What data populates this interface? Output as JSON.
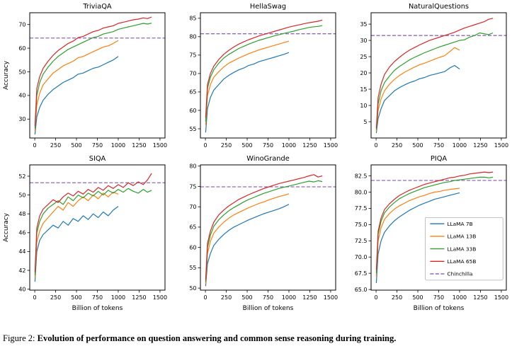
{
  "caption": {
    "label": "Figure 2: ",
    "text": "Evolution of performance on question answering and common sense reasoning during training."
  },
  "legend_labels": [
    "LLaMA 7B",
    "LLaMA 13B",
    "LLaMA 33B",
    "LLaMA 65B",
    "Chinchilla"
  ],
  "colors": {
    "LLaMA 7B": "#1f77b4",
    "LLaMA 13B": "#ff7f0e",
    "LLaMA 33B": "#2ca02c",
    "LLaMA 65B": "#d62728",
    "Chinchilla": "#9467bd",
    "frame": "#000000"
  },
  "x_short": [
    3,
    25,
    60,
    100,
    160,
    220,
    280,
    340,
    400,
    460,
    520,
    580,
    640,
    700,
    760,
    820,
    880,
    940,
    1000
  ],
  "x_long": [
    3,
    25,
    60,
    100,
    160,
    220,
    280,
    340,
    400,
    460,
    520,
    580,
    640,
    700,
    760,
    820,
    880,
    940,
    1000,
    1060,
    1120,
    1180,
    1240,
    1300,
    1350,
    1400
  ],
  "chart_data": [
    {
      "type": "line",
      "title": "TriviaQA",
      "ylabel": "Accuracy",
      "xlabel": "",
      "ylim": [
        22,
        75
      ],
      "yticks": [
        30,
        40,
        50,
        60,
        70
      ],
      "ytick_labels": [
        "30",
        "40",
        "50",
        "60",
        "70"
      ],
      "xticks": [
        0,
        250,
        500,
        750,
        1000,
        1250,
        1500
      ],
      "xlim": [
        -60,
        1560
      ],
      "chinchilla": 64.3,
      "show_legend": false,
      "series": [
        {
          "name": "LLaMA 7B",
          "xref": "short",
          "values": [
            23.5,
            31.0,
            35.0,
            38.0,
            40.5,
            42.5,
            44.0,
            45.5,
            46.5,
            47.5,
            49.0,
            49.5,
            50.5,
            51.5,
            52.0,
            53.0,
            54.0,
            55.0,
            56.5
          ]
        },
        {
          "name": "LLaMA 13B",
          "xref": "short",
          "values": [
            25.0,
            36.0,
            41.0,
            44.5,
            47.0,
            49.5,
            51.0,
            52.5,
            53.5,
            54.5,
            56.0,
            56.5,
            57.5,
            58.5,
            59.5,
            60.5,
            61.0,
            62.0,
            63.3
          ]
        },
        {
          "name": "LLaMA 33B",
          "xref": "long",
          "values": [
            26.0,
            40.0,
            45.5,
            49.0,
            52.0,
            54.5,
            56.5,
            58.0,
            59.5,
            60.5,
            61.5,
            62.5,
            63.5,
            64.5,
            65.0,
            66.0,
            66.5,
            67.0,
            68.0,
            68.5,
            69.0,
            69.5,
            70.0,
            70.5,
            70.2,
            70.6
          ]
        },
        {
          "name": "LLaMA 65B",
          "xref": "long",
          "values": [
            27.0,
            43.0,
            48.0,
            51.5,
            54.5,
            57.0,
            59.0,
            60.5,
            62.0,
            63.0,
            64.5,
            65.0,
            66.0,
            67.0,
            67.5,
            68.5,
            69.0,
            69.5,
            70.5,
            71.0,
            71.5,
            72.0,
            72.3,
            72.8,
            72.5,
            73.2
          ]
        }
      ]
    },
    {
      "type": "line",
      "title": "HellaSwag",
      "ylabel": "",
      "xlabel": "",
      "ylim": [
        52.5,
        86.5
      ],
      "yticks": [
        55,
        60,
        65,
        70,
        75,
        80,
        85
      ],
      "ytick_labels": [
        "55",
        "60",
        "65",
        "70",
        "75",
        "80",
        "85"
      ],
      "xticks": [
        0,
        250,
        500,
        750,
        1000,
        1250,
        1500
      ],
      "xlim": [
        -60,
        1560
      ],
      "chinchilla": 80.8,
      "show_legend": false,
      "series": [
        {
          "name": "LLaMA 7B",
          "xref": "short",
          "values": [
            54.0,
            60.5,
            63.5,
            65.5,
            67.0,
            68.5,
            69.5,
            70.3,
            71.0,
            71.5,
            72.2,
            72.6,
            73.2,
            73.6,
            74.0,
            74.4,
            74.8,
            75.2,
            75.7
          ]
        },
        {
          "name": "LLaMA 13B",
          "xref": "short",
          "values": [
            56.0,
            64.0,
            67.0,
            69.0,
            70.5,
            71.8,
            72.8,
            73.5,
            74.2,
            74.8,
            75.4,
            75.9,
            76.4,
            76.8,
            77.2,
            77.6,
            78.0,
            78.4,
            78.8
          ]
        },
        {
          "name": "LLaMA 33B",
          "xref": "long",
          "values": [
            57.0,
            66.0,
            69.0,
            71.0,
            72.8,
            74.2,
            75.2,
            76.0,
            76.8,
            77.4,
            78.0,
            78.5,
            79.0,
            79.4,
            79.8,
            80.2,
            80.5,
            80.9,
            81.2,
            81.5,
            81.9,
            82.2,
            82.5,
            82.7,
            82.8,
            83.0
          ]
        },
        {
          "name": "LLaMA 65B",
          "xref": "long",
          "values": [
            58.0,
            67.0,
            70.0,
            72.0,
            73.8,
            75.2,
            76.3,
            77.2,
            78.0,
            78.6,
            79.2,
            79.7,
            80.2,
            80.6,
            81.0,
            81.4,
            81.8,
            82.2,
            82.6,
            82.9,
            83.2,
            83.5,
            83.8,
            84.0,
            84.2,
            84.5
          ]
        }
      ]
    },
    {
      "type": "line",
      "title": "NaturalQuestions",
      "ylabel": "",
      "xlabel": "",
      "ylim": [
        0,
        38.5
      ],
      "yticks": [
        5,
        10,
        15,
        20,
        25,
        30,
        35
      ],
      "ytick_labels": [
        "5",
        "10",
        "15",
        "20",
        "25",
        "30",
        "35"
      ],
      "xticks": [
        0,
        250,
        500,
        750,
        1000,
        1250,
        1500
      ],
      "xlim": [
        -60,
        1560
      ],
      "chinchilla": 31.5,
      "show_legend": false,
      "series": [
        {
          "name": "LLaMA 7B",
          "xref": "short",
          "values": [
            1.5,
            6.0,
            9.0,
            11.5,
            13.0,
            14.5,
            15.5,
            16.3,
            17.0,
            17.5,
            18.2,
            18.6,
            19.2,
            19.6,
            20.0,
            20.4,
            21.5,
            22.3,
            21.2
          ]
        },
        {
          "name": "LLaMA 13B",
          "xref": "short",
          "values": [
            2.0,
            8.5,
            12.0,
            14.5,
            16.5,
            18.0,
            19.2,
            20.2,
            21.0,
            21.8,
            22.5,
            23.0,
            23.6,
            24.2,
            24.8,
            25.3,
            26.5,
            27.8,
            27.0
          ]
        },
        {
          "name": "LLaMA 33B",
          "xref": "long",
          "values": [
            2.5,
            10.5,
            14.5,
            17.0,
            19.0,
            20.8,
            22.0,
            23.0,
            24.0,
            24.8,
            25.5,
            26.2,
            26.8,
            27.4,
            28.0,
            28.5,
            29.0,
            29.5,
            30.0,
            30.2,
            31.0,
            31.5,
            32.3,
            32.0,
            31.8,
            32.3
          ]
        },
        {
          "name": "LLaMA 65B",
          "xref": "long",
          "values": [
            3.0,
            12.5,
            16.5,
            19.5,
            21.8,
            23.5,
            24.8,
            26.0,
            27.0,
            27.8,
            28.6,
            29.3,
            30.0,
            30.5,
            31.0,
            31.5,
            32.0,
            32.5,
            33.2,
            33.8,
            34.3,
            34.8,
            35.3,
            35.8,
            36.5,
            36.8
          ]
        }
      ]
    },
    {
      "type": "line",
      "title": "SIQA",
      "ylabel": "Accuracy",
      "xlabel": "Billion of tokens",
      "ylim": [
        39.9,
        53.2
      ],
      "yticks": [
        40,
        42,
        44,
        46,
        48,
        50,
        52
      ],
      "ytick_labels": [
        "40",
        "42",
        "44",
        "46",
        "48",
        "50",
        "52"
      ],
      "xticks": [
        0,
        250,
        500,
        750,
        1000,
        1250,
        1500
      ],
      "xlim": [
        -60,
        1560
      ],
      "chinchilla": 51.3,
      "show_legend": false,
      "series": [
        {
          "name": "LLaMA 7B",
          "xref": "short",
          "values": [
            40.8,
            44.0,
            45.2,
            45.8,
            46.3,
            46.8,
            46.5,
            47.2,
            46.8,
            47.5,
            47.2,
            47.8,
            47.4,
            48.0,
            47.6,
            48.2,
            47.8,
            48.4,
            48.8
          ]
        },
        {
          "name": "LLaMA 13B",
          "xref": "short",
          "values": [
            41.2,
            45.0,
            46.2,
            47.0,
            47.6,
            48.2,
            48.8,
            48.4,
            49.2,
            48.8,
            49.4,
            49.8,
            49.4,
            50.0,
            49.6,
            50.2,
            49.8,
            50.3,
            50.1
          ]
        },
        {
          "name": "LLaMA 33B",
          "xref": "long",
          "values": [
            41.5,
            46.0,
            47.2,
            48.0,
            48.6,
            49.0,
            49.4,
            49.0,
            49.8,
            49.4,
            50.0,
            49.7,
            50.2,
            49.9,
            50.4,
            50.0,
            50.5,
            50.2,
            50.6,
            50.3,
            50.7,
            50.4,
            50.2,
            50.6,
            50.3,
            50.5
          ]
        },
        {
          "name": "LLaMA 65B",
          "xref": "long",
          "values": [
            41.8,
            46.5,
            47.8,
            48.5,
            49.0,
            49.5,
            49.2,
            49.8,
            50.2,
            49.9,
            50.4,
            50.1,
            50.6,
            50.3,
            50.8,
            50.5,
            51.0,
            50.7,
            51.1,
            50.8,
            51.3,
            51.0,
            51.4,
            51.1,
            51.6,
            52.3
          ]
        }
      ]
    },
    {
      "type": "line",
      "title": "WinoGrande",
      "ylabel": "",
      "xlabel": "Billion of tokens",
      "ylim": [
        49.5,
        80.3
      ],
      "yticks": [
        50,
        55,
        60,
        65,
        70,
        75,
        80
      ],
      "ytick_labels": [
        "50",
        "55",
        "60",
        "65",
        "70",
        "75",
        "80"
      ],
      "xticks": [
        0,
        250,
        500,
        750,
        1000,
        1250,
        1500
      ],
      "xlim": [
        -60,
        1560
      ],
      "chinchilla": 74.9,
      "show_legend": false,
      "series": [
        {
          "name": "LLaMA 7B",
          "xref": "short",
          "values": [
            50.5,
            56.0,
            58.5,
            60.5,
            62.0,
            63.2,
            64.2,
            65.0,
            65.6,
            66.2,
            66.8,
            67.3,
            67.8,
            68.3,
            68.7,
            69.1,
            69.5,
            70.0,
            70.6
          ]
        },
        {
          "name": "LLaMA 13B",
          "xref": "short",
          "values": [
            51.0,
            58.5,
            61.5,
            63.5,
            65.0,
            66.2,
            67.2,
            68.0,
            68.6,
            69.2,
            69.8,
            70.3,
            70.8,
            71.2,
            71.7,
            72.1,
            72.5,
            72.8,
            73.2
          ]
        },
        {
          "name": "LLaMA 33B",
          "xref": "long",
          "values": [
            51.5,
            60.0,
            63.0,
            65.2,
            66.8,
            68.0,
            69.0,
            69.8,
            70.5,
            71.2,
            71.8,
            72.3,
            72.8,
            73.3,
            73.7,
            74.1,
            74.5,
            74.8,
            75.1,
            75.4,
            75.7,
            76.0,
            76.3,
            76.1,
            76.4,
            76.2
          ]
        },
        {
          "name": "LLaMA 65B",
          "xref": "long",
          "values": [
            52.0,
            61.0,
            64.0,
            66.2,
            68.0,
            69.2,
            70.2,
            71.0,
            71.8,
            72.4,
            73.0,
            73.5,
            74.0,
            74.5,
            74.9,
            75.3,
            75.7,
            76.0,
            76.3,
            76.6,
            76.9,
            77.2,
            77.6,
            77.9,
            77.3,
            77.6
          ]
        }
      ]
    },
    {
      "type": "line",
      "title": "PIQA",
      "ylabel": "",
      "xlabel": "Billion of tokens",
      "ylim": [
        64.9,
        84.2
      ],
      "yticks": [
        65.0,
        67.5,
        70.0,
        72.5,
        75.0,
        77.5,
        80.0,
        82.5
      ],
      "ytick_labels": [
        "65.0",
        "67.5",
        "70.0",
        "72.5",
        "75.0",
        "77.5",
        "80.0",
        "82.5"
      ],
      "xticks": [
        0,
        250,
        500,
        750,
        1000,
        1250,
        1500
      ],
      "xlim": [
        -60,
        1560
      ],
      "chinchilla": 81.8,
      "show_legend": true,
      "series": [
        {
          "name": "LLaMA 7B",
          "xref": "short",
          "values": [
            66.0,
            70.5,
            72.5,
            73.8,
            74.8,
            75.6,
            76.2,
            76.7,
            77.2,
            77.6,
            78.0,
            78.3,
            78.6,
            78.9,
            79.1,
            79.3,
            79.5,
            79.7,
            79.9
          ]
        },
        {
          "name": "LLaMA 13B",
          "xref": "short",
          "values": [
            67.0,
            72.5,
            74.5,
            75.8,
            76.7,
            77.4,
            77.9,
            78.3,
            78.7,
            79.0,
            79.3,
            79.5,
            79.8,
            80.0,
            80.1,
            80.3,
            80.4,
            80.5,
            80.6
          ]
        },
        {
          "name": "LLaMA 33B",
          "xref": "long",
          "values": [
            67.5,
            73.5,
            75.5,
            76.8,
            77.7,
            78.4,
            79.0,
            79.4,
            79.8,
            80.1,
            80.4,
            80.7,
            80.9,
            81.1,
            81.3,
            81.5,
            81.6,
            81.8,
            81.9,
            82.0,
            82.1,
            82.2,
            82.3,
            82.3,
            82.2,
            82.3
          ]
        },
        {
          "name": "LLaMA 65B",
          "xref": "long",
          "values": [
            68.0,
            74.0,
            76.0,
            77.3,
            78.2,
            78.9,
            79.5,
            79.9,
            80.3,
            80.6,
            80.9,
            81.2,
            81.4,
            81.6,
            81.8,
            82.0,
            82.2,
            82.3,
            82.5,
            82.6,
            82.8,
            82.9,
            83.0,
            83.1,
            83.0,
            83.1
          ]
        }
      ]
    }
  ]
}
